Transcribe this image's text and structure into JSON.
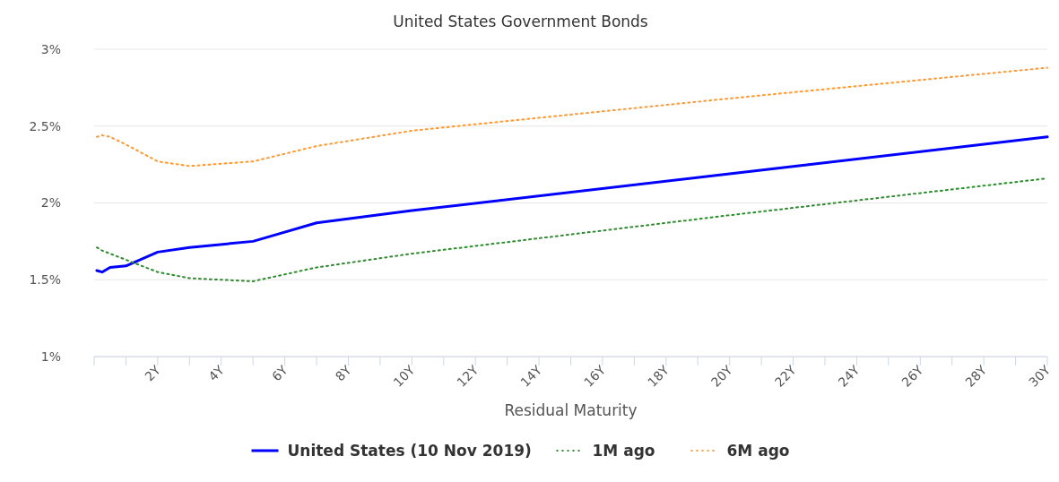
{
  "chart_data": {
    "type": "line",
    "title": "United States Government Bonds",
    "xlabel": "Residual Maturity",
    "xlim": [
      0,
      30
    ],
    "xticks": [
      {
        "value": 1,
        "label": null
      },
      {
        "value": 2,
        "label": "2Y"
      },
      {
        "value": 3,
        "label": null
      },
      {
        "value": 4,
        "label": "4Y"
      },
      {
        "value": 5,
        "label": null
      },
      {
        "value": 6,
        "label": "6Y"
      },
      {
        "value": 7,
        "label": null
      },
      {
        "value": 8,
        "label": "8Y"
      },
      {
        "value": 9,
        "label": null
      },
      {
        "value": 10,
        "label": "10Y"
      },
      {
        "value": 11,
        "label": null
      },
      {
        "value": 12,
        "label": "12Y"
      },
      {
        "value": 13,
        "label": null
      },
      {
        "value": 14,
        "label": "14Y"
      },
      {
        "value": 15,
        "label": null
      },
      {
        "value": 16,
        "label": "16Y"
      },
      {
        "value": 17,
        "label": null
      },
      {
        "value": 18,
        "label": "18Y"
      },
      {
        "value": 19,
        "label": null
      },
      {
        "value": 20,
        "label": "20Y"
      },
      {
        "value": 21,
        "label": null
      },
      {
        "value": 22,
        "label": "22Y"
      },
      {
        "value": 23,
        "label": null
      },
      {
        "value": 24,
        "label": "24Y"
      },
      {
        "value": 25,
        "label": null
      },
      {
        "value": 26,
        "label": "26Y"
      },
      {
        "value": 27,
        "label": null
      },
      {
        "value": 28,
        "label": "28Y"
      },
      {
        "value": 29,
        "label": null
      },
      {
        "value": 30,
        "label": "30Y"
      }
    ],
    "ylim": [
      1,
      3
    ],
    "yticks": [
      {
        "value": 1,
        "label": "1%"
      },
      {
        "value": 1.5,
        "label": "1.5%"
      },
      {
        "value": 2,
        "label": "2%"
      },
      {
        "value": 2.5,
        "label": "2.5%"
      },
      {
        "value": 3,
        "label": "3%"
      }
    ],
    "grid": "y",
    "legend": "bottom",
    "marker": "none",
    "x": [
      0.083,
      0.25,
      0.5,
      1,
      2,
      3,
      5,
      7,
      10,
      20,
      30
    ],
    "series": [
      {
        "name": "United States (10 Nov 2019)",
        "color": "#0000ff",
        "line_style": "solid",
        "values": [
          1.56,
          1.55,
          1.58,
          1.59,
          1.68,
          1.71,
          1.75,
          1.87,
          1.95,
          2.19,
          2.43
        ]
      },
      {
        "name": "1M ago",
        "color": "#2e8b2e",
        "line_style": "dotted",
        "values": [
          1.71,
          1.69,
          1.67,
          1.63,
          1.55,
          1.51,
          1.49,
          1.58,
          1.67,
          1.92,
          2.16
        ]
      },
      {
        "name": "6M ago",
        "color": "#ff9933",
        "line_style": "dotted",
        "values": [
          2.43,
          2.44,
          2.43,
          2.38,
          2.27,
          2.24,
          2.27,
          2.37,
          2.47,
          2.68,
          2.88
        ]
      }
    ]
  }
}
